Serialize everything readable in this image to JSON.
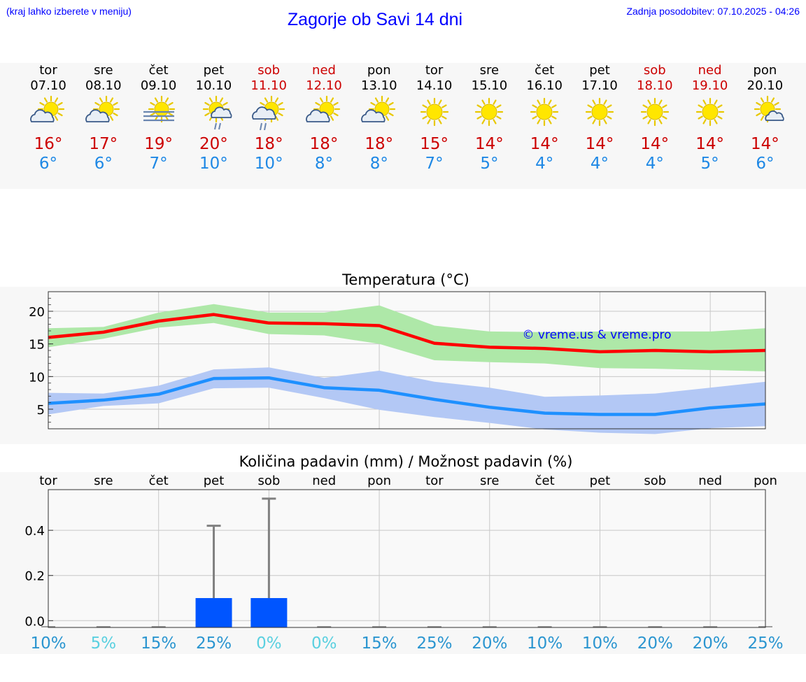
{
  "header": {
    "hint": "(kraj lahko izberete v meniju)",
    "title": "Zagorje ob Savi 14 dni",
    "updated": "Zadnja posodobitev: 07.10.2025 - 04:26"
  },
  "forecast": [
    {
      "day": "tor",
      "date": "07.10",
      "icon": "sun-cloud-icon",
      "tmax": "16°",
      "tmin": "6°",
      "weekend": false
    },
    {
      "day": "sre",
      "date": "08.10",
      "icon": "sun-cloud-icon",
      "tmax": "17°",
      "tmin": "6°",
      "weekend": false
    },
    {
      "day": "čet",
      "date": "09.10",
      "icon": "sun-fog-icon",
      "tmax": "19°",
      "tmin": "7°",
      "weekend": false
    },
    {
      "day": "pet",
      "date": "10.10",
      "icon": "sun-rain-icon",
      "tmax": "20°",
      "tmin": "10°",
      "weekend": false
    },
    {
      "day": "sob",
      "date": "11.10",
      "icon": "sun-cloud-rain-icon",
      "tmax": "18°",
      "tmin": "10°",
      "weekend": true
    },
    {
      "day": "ned",
      "date": "12.10",
      "icon": "sun-cloud-icon",
      "tmax": "18°",
      "tmin": "8°",
      "weekend": true
    },
    {
      "day": "pon",
      "date": "13.10",
      "icon": "sun-cloud-icon",
      "tmax": "18°",
      "tmin": "8°",
      "weekend": false
    },
    {
      "day": "tor",
      "date": "14.10",
      "icon": "sun-icon",
      "tmax": "15°",
      "tmin": "7°",
      "weekend": false
    },
    {
      "day": "sre",
      "date": "15.10",
      "icon": "sun-icon",
      "tmax": "14°",
      "tmin": "5°",
      "weekend": false
    },
    {
      "day": "čet",
      "date": "16.10",
      "icon": "sun-icon",
      "tmax": "14°",
      "tmin": "4°",
      "weekend": false
    },
    {
      "day": "pet",
      "date": "17.10",
      "icon": "sun-icon",
      "tmax": "14°",
      "tmin": "4°",
      "weekend": false
    },
    {
      "day": "sob",
      "date": "18.10",
      "icon": "sun-icon",
      "tmax": "14°",
      "tmin": "4°",
      "weekend": true
    },
    {
      "day": "ned",
      "date": "19.10",
      "icon": "sun-icon",
      "tmax": "14°",
      "tmin": "5°",
      "weekend": true
    },
    {
      "day": "pon",
      "date": "20.10",
      "icon": "sun-small-cloud-icon",
      "tmax": "14°",
      "tmin": "6°",
      "weekend": false
    }
  ],
  "colors": {
    "title_blue": "#0000ff",
    "tmax_red": "#cc0000",
    "tmin_blue": "#1e88e5",
    "max_line": "#ff0000",
    "max_band": "#aee8a8",
    "min_line": "#1e90ff",
    "min_band": "#b3c8f5",
    "bar": "#0055ff",
    "whisker": "#808080",
    "pct_dark": "#2a95d0",
    "pct_light": "#5ad0e0"
  },
  "chart_data": [
    {
      "type": "line",
      "title": "Temperatura (°C)",
      "watermark": "© vreme.us & vreme.pro",
      "x": [
        "tor",
        "sre",
        "čet",
        "pet",
        "sob",
        "ned",
        "pon",
        "tor",
        "sre",
        "čet",
        "pet",
        "sob",
        "ned",
        "pon"
      ],
      "ylim": [
        2,
        23
      ],
      "yticks": [
        5,
        10,
        15,
        20
      ],
      "grid": true,
      "series": [
        {
          "role": "max",
          "values": [
            16,
            16.8,
            18.5,
            19.5,
            18.2,
            18.1,
            17.8,
            15.1,
            14.5,
            14.3,
            13.8,
            14.0,
            13.8,
            14.0
          ],
          "band_low": [
            14.5,
            15.8,
            17.5,
            18.2,
            16.5,
            16.3,
            15.0,
            12.5,
            12.2,
            12.0,
            11.3,
            11.2,
            11.0,
            10.8
          ],
          "band_high": [
            17.4,
            17.6,
            19.8,
            21.1,
            19.8,
            19.8,
            20.9,
            17.8,
            16.9,
            16.8,
            16.9,
            16.9,
            16.9,
            17.4
          ]
        },
        {
          "role": "min",
          "values": [
            5.9,
            6.4,
            7.3,
            9.7,
            9.8,
            8.3,
            7.9,
            6.5,
            5.3,
            4.4,
            4.2,
            4.2,
            5.2,
            5.8
          ],
          "band_low": [
            4.2,
            5.5,
            5.9,
            8.2,
            8.3,
            6.7,
            4.9,
            3.8,
            2.9,
            1.9,
            1.4,
            1.2,
            2.1,
            2.4
          ],
          "band_high": [
            7.5,
            7.4,
            8.6,
            11.1,
            11.4,
            9.8,
            10.9,
            9.2,
            8.3,
            6.9,
            7.1,
            7.4,
            8.3,
            9.2
          ]
        }
      ]
    },
    {
      "type": "bar",
      "title": "Količina padavin (mm) / Možnost padavin (%)",
      "categories": [
        "tor",
        "sre",
        "čet",
        "pet",
        "sob",
        "ned",
        "pon",
        "tor",
        "sre",
        "čet",
        "pet",
        "sob",
        "ned",
        "pon"
      ],
      "ylim": [
        -0.03,
        0.58
      ],
      "yticks": [
        0.0,
        0.2,
        0.4
      ],
      "yticklabels": [
        "0.0",
        "0.2",
        "0.4"
      ],
      "values": [
        0,
        0,
        0,
        0.1,
        0.1,
        0,
        0,
        0,
        0,
        0,
        0,
        0,
        0,
        0
      ],
      "error_high": [
        0,
        0,
        0,
        0.42,
        0.54,
        0,
        0,
        0,
        0,
        0,
        0,
        0,
        0,
        0
      ],
      "probability": [
        "10%",
        "5%",
        "15%",
        "25%",
        "0%",
        "0%",
        "15%",
        "25%",
        "20%",
        "10%",
        "10%",
        "20%",
        "20%",
        "25%"
      ],
      "probability_light": [
        false,
        true,
        false,
        false,
        true,
        true,
        false,
        false,
        false,
        false,
        false,
        false,
        false,
        false
      ]
    }
  ]
}
